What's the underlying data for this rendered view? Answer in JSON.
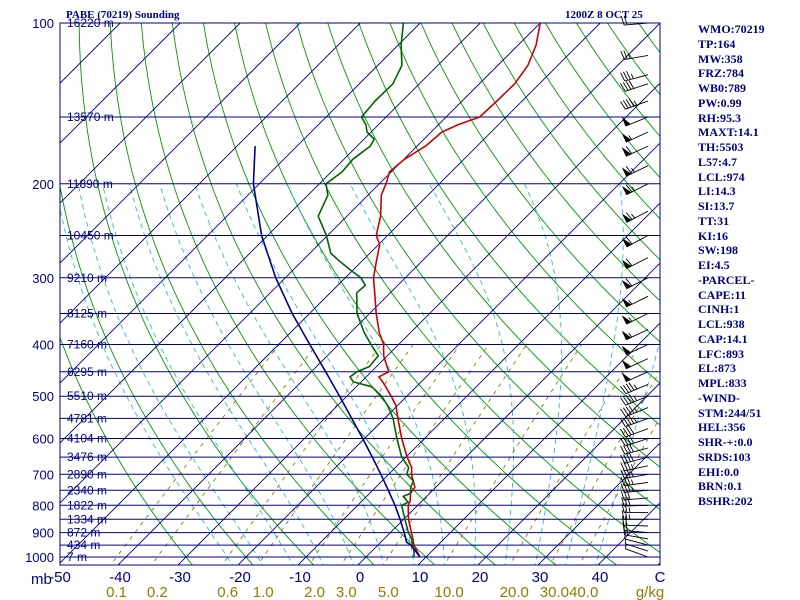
{
  "chart_data": {
    "type": "line",
    "title": "PABE (70219) Sounding",
    "time_label": "1200Z  8 OCT 25",
    "pressure_axis_label": "mb",
    "pressure_levels": [
      100,
      200,
      300,
      400,
      500,
      600,
      700,
      800,
      900,
      1000
    ],
    "ylim": [
      1050,
      100
    ],
    "temperature_ticks": [
      "-50",
      "-40",
      "-30",
      "-20",
      "-10",
      "0",
      "10",
      "20",
      "30",
      "40",
      "C"
    ],
    "xlim": [
      -50,
      50
    ],
    "mixing_ratio_ticks": [
      "0.1",
      "0.2",
      "0.6",
      "1.0",
      "2.0",
      "3.0",
      "5.0",
      "10.0",
      "20.0",
      "30.0",
      "40.0",
      "g/kg"
    ],
    "mixing_ratio_values": [
      0.1,
      0.2,
      0.6,
      1.0,
      2.0,
      3.0,
      5.0,
      10.0,
      20.0,
      30.0,
      40.0
    ],
    "height_labels": [
      {
        "p": 100,
        "label": "16220 m"
      },
      {
        "p": 150,
        "label": "13570 m"
      },
      {
        "p": 200,
        "label": "11890 m"
      },
      {
        "p": 250,
        "label": "10450 m"
      },
      {
        "p": 300,
        "label": "9210 m"
      },
      {
        "p": 350,
        "label": "8125 m"
      },
      {
        "p": 400,
        "label": "7160 m"
      },
      {
        "p": 450,
        "label": "6295 m"
      },
      {
        "p": 500,
        "label": "5510 m"
      },
      {
        "p": 550,
        "label": "4781 m"
      },
      {
        "p": 600,
        "label": "4104 m"
      },
      {
        "p": 650,
        "label": "3476 m"
      },
      {
        "p": 700,
        "label": "2890 m"
      },
      {
        "p": 750,
        "label": "2340 m"
      },
      {
        "p": 800,
        "label": "1822 m"
      },
      {
        "p": 850,
        "label": "1334 m"
      },
      {
        "p": 900,
        "label": "872 m"
      },
      {
        "p": 950,
        "label": "434 m"
      },
      {
        "p": 1000,
        "label": "7 m"
      }
    ],
    "series": [
      {
        "name": "Temperature",
        "color": "#cc0000",
        "points": [
          [
            1000,
            9.0
          ],
          [
            975,
            7.5
          ],
          [
            950,
            6.0
          ],
          [
            925,
            4.8
          ],
          [
            900,
            3.5
          ],
          [
            850,
            0.8
          ],
          [
            800,
            -1.6
          ],
          [
            785,
            -2.0
          ],
          [
            760,
            -3.2
          ],
          [
            740,
            -3.5
          ],
          [
            700,
            -6.2
          ],
          [
            680,
            -7.3
          ],
          [
            650,
            -9.8
          ],
          [
            600,
            -13.8
          ],
          [
            550,
            -17.8
          ],
          [
            520,
            -20.3
          ],
          [
            500,
            -22.6
          ],
          [
            470,
            -26.4
          ],
          [
            460,
            -27.9
          ],
          [
            450,
            -27.1
          ],
          [
            420,
            -30.6
          ],
          [
            400,
            -32.5
          ],
          [
            380,
            -35.2
          ],
          [
            350,
            -38.9
          ],
          [
            320,
            -42.6
          ],
          [
            300,
            -45.3
          ],
          [
            280,
            -47.5
          ],
          [
            260,
            -49.8
          ],
          [
            250,
            -51.9
          ],
          [
            230,
            -54.4
          ],
          [
            210,
            -57.8
          ],
          [
            200,
            -58.9
          ],
          [
            190,
            -60.3
          ],
          [
            180,
            -59.9
          ],
          [
            170,
            -58.6
          ],
          [
            160,
            -58.2
          ],
          [
            155,
            -56.7
          ],
          [
            150,
            -54.4
          ],
          [
            140,
            -54.2
          ],
          [
            130,
            -54.1
          ],
          [
            120,
            -55.0
          ],
          [
            110,
            -57.0
          ],
          [
            100,
            -60.0
          ]
        ]
      },
      {
        "name": "Dewpoint",
        "color": "#006400",
        "points": [
          [
            1000,
            8.0
          ],
          [
            975,
            7.0
          ],
          [
            950,
            5.8
          ],
          [
            925,
            4.6
          ],
          [
            900,
            3.0
          ],
          [
            850,
            0.2
          ],
          [
            800,
            -2.7
          ],
          [
            790,
            -2.1
          ],
          [
            770,
            -3.9
          ],
          [
            760,
            -3.2
          ],
          [
            740,
            -4.2
          ],
          [
            720,
            -4.8
          ],
          [
            700,
            -7.0
          ],
          [
            680,
            -7.8
          ],
          [
            650,
            -10.7
          ],
          [
            600,
            -14.6
          ],
          [
            550,
            -18.6
          ],
          [
            520,
            -21.7
          ],
          [
            500,
            -24.2
          ],
          [
            480,
            -27.4
          ],
          [
            470,
            -31.3
          ],
          [
            460,
            -32.7
          ],
          [
            450,
            -32.4
          ],
          [
            440,
            -31.2
          ],
          [
            420,
            -31.5
          ],
          [
            400,
            -34.6
          ],
          [
            380,
            -37.7
          ],
          [
            350,
            -42.1
          ],
          [
            320,
            -45.6
          ],
          [
            310,
            -45.4
          ],
          [
            300,
            -47.4
          ],
          [
            290,
            -50.5
          ],
          [
            280,
            -53.5
          ],
          [
            270,
            -56.5
          ],
          [
            250,
            -60.2
          ],
          [
            230,
            -64.8
          ],
          [
            210,
            -66.7
          ],
          [
            200,
            -68.9
          ],
          [
            190,
            -68.2
          ],
          [
            180,
            -68.5
          ],
          [
            170,
            -67.8
          ],
          [
            165,
            -68.3
          ],
          [
            160,
            -70.7
          ],
          [
            155,
            -72.1
          ],
          [
            150,
            -74.1
          ],
          [
            140,
            -74.5
          ],
          [
            130,
            -74.4
          ],
          [
            120,
            -76.0
          ],
          [
            110,
            -79.5
          ],
          [
            100,
            -82.8
          ]
        ]
      },
      {
        "name": "Parcel",
        "color": "#00008b",
        "points": [
          [
            1000,
            9.0
          ],
          [
            950,
            5.5
          ],
          [
            938,
            4.3
          ],
          [
            900,
            2.3
          ],
          [
            850,
            -0.6
          ],
          [
            800,
            -3.8
          ],
          [
            750,
            -7.4
          ],
          [
            700,
            -11.3
          ],
          [
            650,
            -15.6
          ],
          [
            600,
            -20.3
          ],
          [
            550,
            -25.5
          ],
          [
            500,
            -31.2
          ],
          [
            450,
            -37.6
          ],
          [
            400,
            -44.8
          ],
          [
            350,
            -52.9
          ],
          [
            300,
            -61.6
          ],
          [
            250,
            -71.0
          ],
          [
            200,
            -81.0
          ],
          [
            170,
            -87.0
          ]
        ]
      }
    ],
    "wind_barbs": [
      {
        "p": 1000,
        "dir": 290,
        "spd": 5
      },
      {
        "p": 975,
        "dir": 288,
        "spd": 7
      },
      {
        "p": 950,
        "dir": 285,
        "spd": 10
      },
      {
        "p": 925,
        "dir": 280,
        "spd": 14
      },
      {
        "p": 900,
        "dir": 275,
        "spd": 19
      },
      {
        "p": 875,
        "dir": 272,
        "spd": 22
      },
      {
        "p": 850,
        "dir": 270,
        "spd": 25
      },
      {
        "p": 825,
        "dir": 270,
        "spd": 27
      },
      {
        "p": 800,
        "dir": 268,
        "spd": 30
      },
      {
        "p": 775,
        "dir": 265,
        "spd": 32
      },
      {
        "p": 750,
        "dir": 265,
        "spd": 34
      },
      {
        "p": 725,
        "dir": 262,
        "spd": 35
      },
      {
        "p": 700,
        "dir": 260,
        "spd": 35
      },
      {
        "p": 675,
        "dir": 258,
        "spd": 36
      },
      {
        "p": 650,
        "dir": 255,
        "spd": 38
      },
      {
        "p": 625,
        "dir": 255,
        "spd": 39
      },
      {
        "p": 600,
        "dir": 252,
        "spd": 40
      },
      {
        "p": 575,
        "dir": 250,
        "spd": 41
      },
      {
        "p": 550,
        "dir": 250,
        "spd": 43
      },
      {
        "p": 525,
        "dir": 248,
        "spd": 44
      },
      {
        "p": 500,
        "dir": 248,
        "spd": 45
      },
      {
        "p": 475,
        "dir": 247,
        "spd": 47
      },
      {
        "p": 450,
        "dir": 246,
        "spd": 48
      },
      {
        "p": 425,
        "dir": 245,
        "spd": 50
      },
      {
        "p": 400,
        "dir": 245,
        "spd": 52
      },
      {
        "p": 375,
        "dir": 245,
        "spd": 54
      },
      {
        "p": 350,
        "dir": 244,
        "spd": 55
      },
      {
        "p": 325,
        "dir": 244,
        "spd": 57
      },
      {
        "p": 300,
        "dir": 243,
        "spd": 60
      },
      {
        "p": 275,
        "dir": 243,
        "spd": 61
      },
      {
        "p": 250,
        "dir": 242,
        "spd": 62
      },
      {
        "p": 225,
        "dir": 242,
        "spd": 63
      },
      {
        "p": 200,
        "dir": 243,
        "spd": 65
      },
      {
        "p": 185,
        "dir": 244,
        "spd": 63
      },
      {
        "p": 170,
        "dir": 245,
        "spd": 60
      },
      {
        "p": 160,
        "dir": 245,
        "spd": 57
      },
      {
        "p": 150,
        "dir": 248,
        "spd": 50
      },
      {
        "p": 140,
        "dir": 250,
        "spd": 45
      },
      {
        "p": 130,
        "dir": 252,
        "spd": 40
      },
      {
        "p": 125,
        "dir": 255,
        "spd": 35
      },
      {
        "p": 115,
        "dir": 260,
        "spd": 25
      },
      {
        "p": 100,
        "dir": 265,
        "spd": 20
      }
    ],
    "colors": {
      "isobar": "#000080",
      "isotherm": "#000080",
      "dry_adiabat": "#009900",
      "moist_adiabat": "#33bbbb",
      "mixing_ratio": "#8b7d00"
    }
  },
  "indices": [
    "WMO:70219",
    "TP:164",
    "MW:358",
    "FRZ:784",
    "WB0:789",
    "PW:0.99",
    "RH:95.3",
    "MAXT:14.1",
    "TH:5503",
    "L57:4.7",
    "LCL:974",
    "LI:14.3",
    "SI:13.7",
    "TT:31",
    "KI:16",
    "SW:198",
    "EI:4.5",
    "-PARCEL-",
    "CAPE:11",
    "CINH:1",
    "LCL:938",
    "CAP:14.1",
    "LFC:893",
    "EL:873",
    "MPL:833",
    "-WIND-",
    "STM:244/51",
    "HEL:356",
    "SHR-+:0.0",
    "SRDS:103",
    "EHI:0.0",
    "BRN:0.1",
    "BSHR:202"
  ]
}
